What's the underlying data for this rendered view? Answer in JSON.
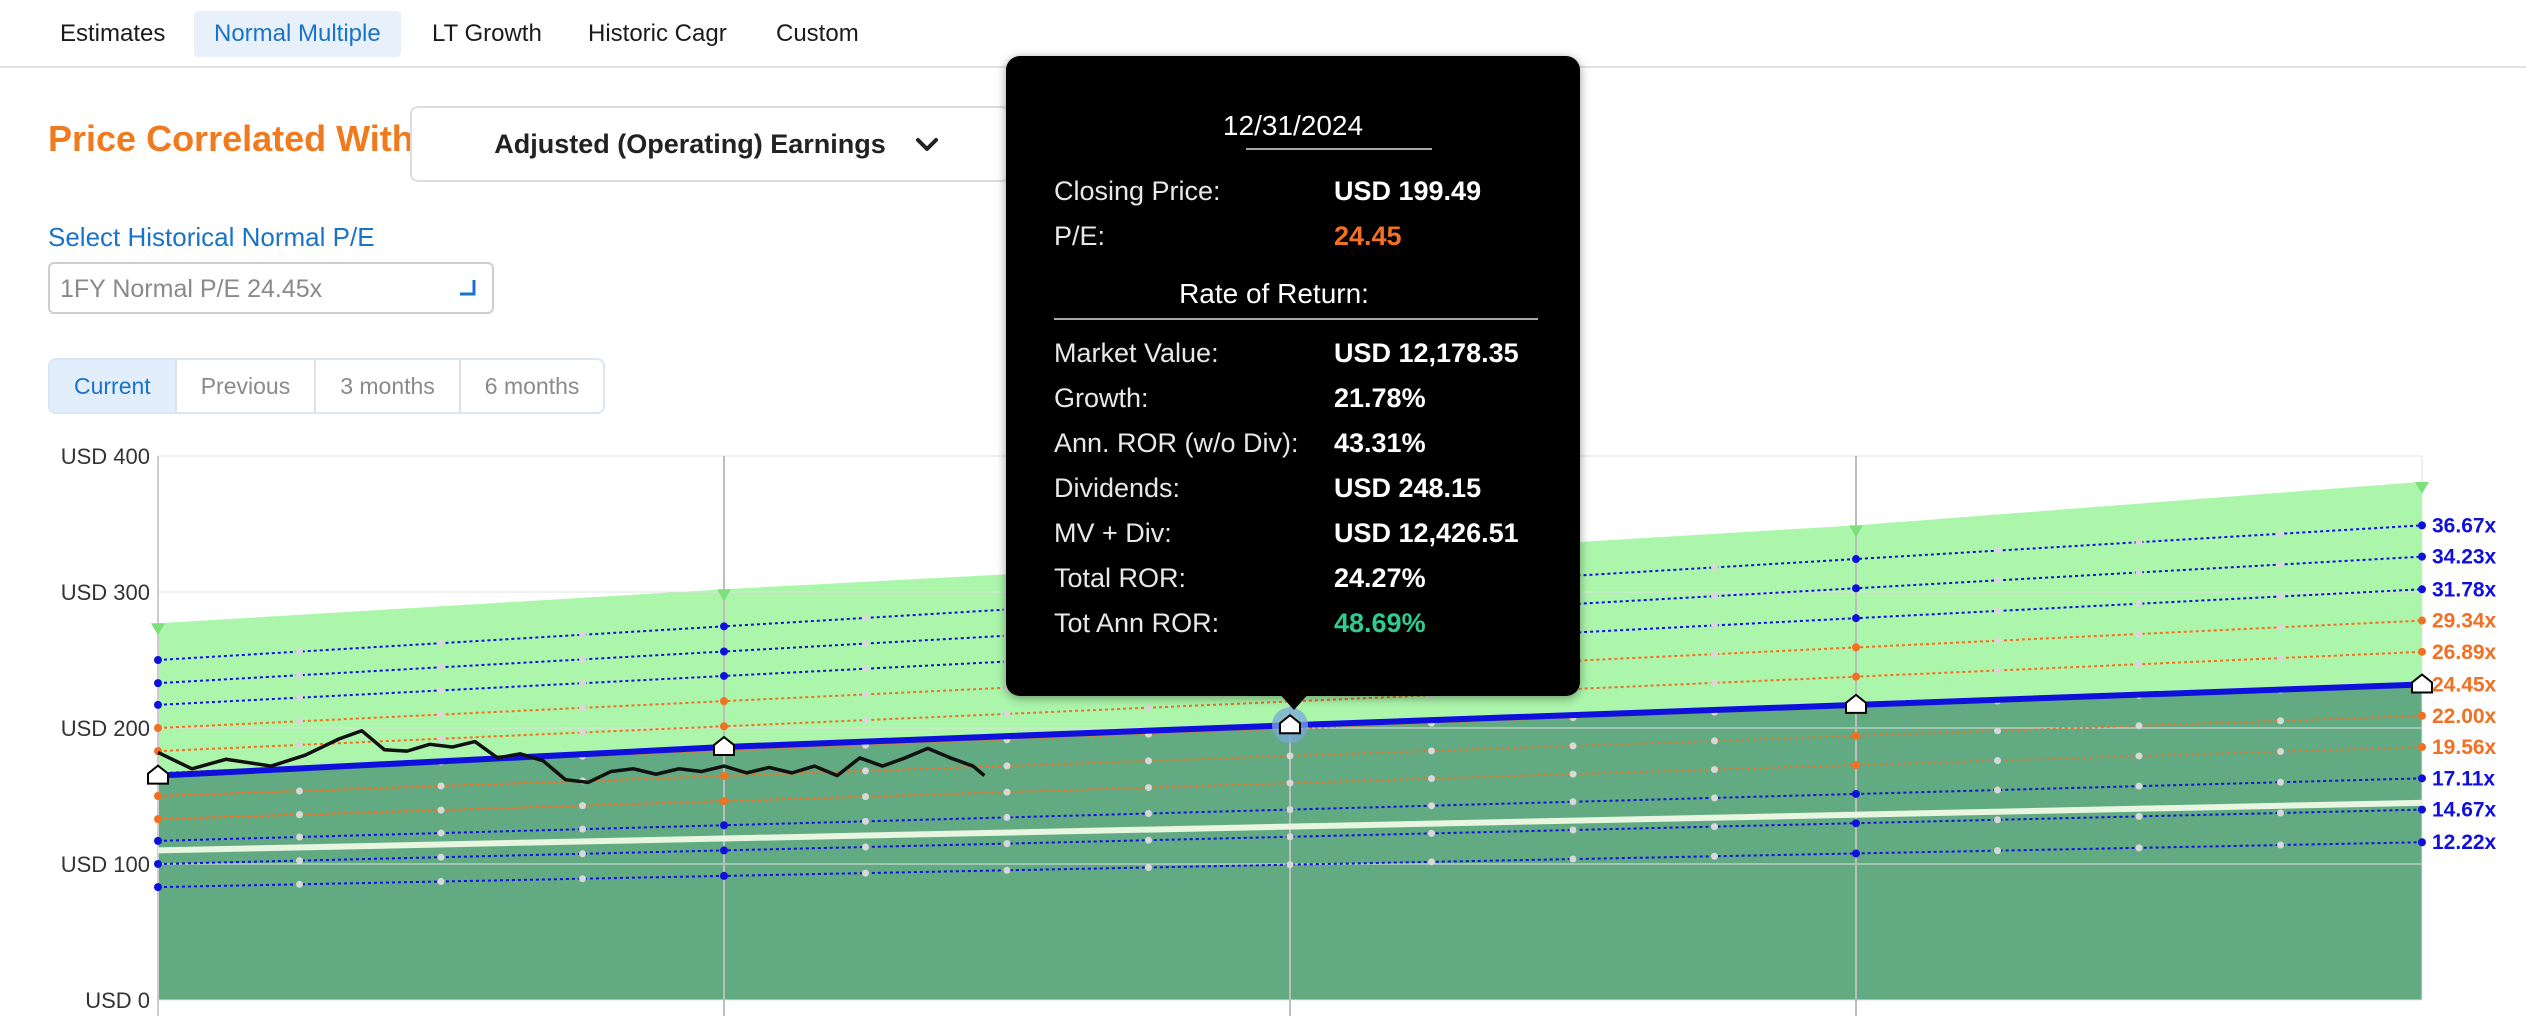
{
  "tabs": [
    {
      "label": "Estimates",
      "active": false
    },
    {
      "label": "Normal Multiple",
      "active": true
    },
    {
      "label": "LT Growth",
      "active": false
    },
    {
      "label": "Historic Cagr",
      "active": false
    },
    {
      "label": "Custom",
      "active": false
    }
  ],
  "correlation": {
    "title": "Price Correlated With",
    "selected": "Adjusted (Operating) Earnings",
    "icon": "chevron-down-icon"
  },
  "historical_pe": {
    "label": "Select Historical Normal P/E",
    "value": "1FY Normal P/E 24.45x"
  },
  "periods": [
    {
      "label": "Current",
      "active": true
    },
    {
      "label": "Previous",
      "active": false
    },
    {
      "label": "3 months",
      "active": false
    },
    {
      "label": "6 months",
      "active": false
    }
  ],
  "tooltip": {
    "date": "12/31/2024",
    "closing_price_label": "Closing Price:",
    "closing_price": "USD 199.49",
    "pe_label": "P/E:",
    "pe": "24.45",
    "pe_color": "#f36f21",
    "ror_header": "Rate of Return:",
    "rows": [
      {
        "label": "Market Value:",
        "value": "USD 12,178.35",
        "color": "#ffffff"
      },
      {
        "label": "Growth:",
        "value": "21.78%",
        "color": "#ffffff"
      },
      {
        "label": "Ann. ROR (w/o Div):",
        "value": "43.31%",
        "color": "#ffffff"
      },
      {
        "label": "Dividends:",
        "value": "USD 248.15",
        "color": "#ffffff"
      },
      {
        "label": "MV + Div:",
        "value": "USD 12,426.51",
        "color": "#ffffff"
      },
      {
        "label": "Total ROR:",
        "value": "24.27%",
        "color": "#ffffff"
      },
      {
        "label": "Tot Ann ROR:",
        "value": "48.69%",
        "color": "#2ecc8f"
      }
    ]
  },
  "chart_data": {
    "type": "area",
    "y_ticks": [
      "USD 0",
      "USD 100",
      "USD 200",
      "USD 300",
      "USD 400"
    ],
    "ylim": [
      0,
      400
    ],
    "x_range": [
      0,
      4
    ],
    "vertical_gridlines_at": [
      1,
      2,
      3
    ],
    "upper_band": [
      277,
      302,
      324,
      349,
      381
    ],
    "fair_value_line": {
      "x": [
        0,
        1,
        2,
        3,
        4
      ],
      "y": [
        165,
        186,
        202,
        217,
        232
      ],
      "color": "#1010dd"
    },
    "normal_pe_line": {
      "x": [
        0,
        4
      ],
      "y": [
        110,
        145
      ],
      "color": "#e8f5e0"
    },
    "fair_value_markers_x": [
      0,
      1,
      2,
      3,
      4
    ],
    "band_markers_x": [
      0,
      1,
      3,
      4
    ],
    "pe_bands": [
      {
        "label": "36.67x",
        "start": 250,
        "end": 349,
        "color": "#1010dd"
      },
      {
        "label": "34.23x",
        "start": 233,
        "end": 326,
        "color": "#1010dd"
      },
      {
        "label": "31.78x",
        "start": 217,
        "end": 302,
        "color": "#1010dd"
      },
      {
        "label": "29.34x",
        "start": 200,
        "end": 279,
        "color": "#f36f21"
      },
      {
        "label": "26.89x",
        "start": 183,
        "end": 256,
        "color": "#f36f21"
      },
      {
        "label": "24.45x",
        "start": 167,
        "end": 232,
        "color": "#f36f21"
      },
      {
        "label": "22.00x",
        "start": 150,
        "end": 209,
        "color": "#f36f21"
      },
      {
        "label": "19.56x",
        "start": 133,
        "end": 186,
        "color": "#f36f21"
      },
      {
        "label": "17.11x",
        "start": 117,
        "end": 163,
        "color": "#1010dd"
      },
      {
        "label": "14.67x",
        "start": 100,
        "end": 140,
        "color": "#1010dd"
      },
      {
        "label": "12.22x",
        "start": 83,
        "end": 116,
        "color": "#1010dd"
      }
    ],
    "price_history": {
      "x": [
        0.0,
        0.06,
        0.12,
        0.2,
        0.26,
        0.32,
        0.36,
        0.4,
        0.44,
        0.48,
        0.52,
        0.56,
        0.6,
        0.64,
        0.68,
        0.72,
        0.76,
        0.8,
        0.84,
        0.88,
        0.92,
        0.96,
        1.0,
        1.04,
        1.08,
        1.12,
        1.16,
        1.2,
        1.24,
        1.28,
        1.32,
        1.36,
        1.4,
        1.44,
        1.46
      ],
      "y": [
        182,
        170,
        177,
        172,
        180,
        192,
        198,
        184,
        183,
        188,
        186,
        190,
        178,
        181,
        176,
        162,
        160,
        168,
        170,
        166,
        170,
        168,
        172,
        167,
        171,
        167,
        172,
        165,
        178,
        172,
        178,
        185,
        178,
        172,
        165
      ],
      "color": "#111111"
    },
    "highlight": {
      "x": 2,
      "y": 202
    }
  }
}
